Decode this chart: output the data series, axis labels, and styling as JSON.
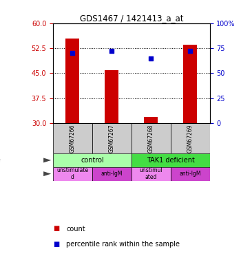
{
  "title": "GDS1467 / 1421413_a_at",
  "samples": [
    "GSM67266",
    "GSM67267",
    "GSM67268",
    "GSM67269"
  ],
  "bar_bottom": 30,
  "bar_values": [
    55.5,
    45.8,
    31.8,
    53.5
  ],
  "pct_values": [
    70.0,
    72.5,
    65.0,
    72.5
  ],
  "left_ylim": [
    30,
    60
  ],
  "left_yticks": [
    30,
    37.5,
    45,
    52.5,
    60
  ],
  "right_yticks_vals": [
    0,
    25,
    50,
    75,
    100
  ],
  "right_ytick_labels": [
    "0",
    "25",
    "50",
    "75",
    "100%"
  ],
  "bar_color": "#cc0000",
  "pct_color": "#0000cc",
  "cell_line_labels": [
    "control",
    "TAK1 deficient"
  ],
  "cell_line_spans": [
    [
      0,
      2
    ],
    [
      2,
      4
    ]
  ],
  "cell_line_colors": [
    "#aaffaa",
    "#44dd44"
  ],
  "agent_labels": [
    "unstimulate\nd",
    "anti-IgM",
    "unstimul\nated",
    "anti-IgM"
  ],
  "agent_colors": [
    "#ee88ee",
    "#cc44cc",
    "#ee88ee",
    "#cc44cc"
  ],
  "sample_bg": "#cccccc",
  "legend_count_color": "#cc0000",
  "legend_pct_color": "#0000cc"
}
